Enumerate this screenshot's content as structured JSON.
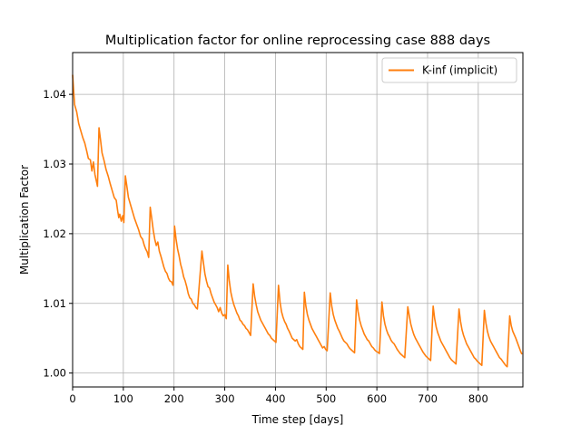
{
  "chart_data": {
    "type": "line",
    "title": "Multiplication factor for online reprocessing case 888 days",
    "xlabel": "Time step [days]",
    "ylabel": "Multiplication Factor",
    "xlim": [
      0,
      888
    ],
    "ylim": [
      0.998,
      1.046
    ],
    "x_ticks": [
      0,
      100,
      200,
      300,
      400,
      500,
      600,
      700,
      800
    ],
    "x_tick_labels": [
      "0",
      "100",
      "200",
      "300",
      "400",
      "500",
      "600",
      "700",
      "800"
    ],
    "y_ticks": [
      1.0,
      1.01,
      1.02,
      1.03,
      1.04
    ],
    "y_tick_labels": [
      "1.00",
      "1.01",
      "1.02",
      "1.03",
      "1.04"
    ],
    "grid": true,
    "legend_position": "top-right",
    "series": [
      {
        "name": "K-inf (implicit)",
        "color": "#ff7f0e",
        "points": [
          [
            0,
            1.0428
          ],
          [
            2,
            1.0405
          ],
          [
            4,
            1.0385
          ],
          [
            8,
            1.0375
          ],
          [
            12,
            1.0358
          ],
          [
            16,
            1.0348
          ],
          [
            20,
            1.0338
          ],
          [
            24,
            1.033
          ],
          [
            28,
            1.0318
          ],
          [
            31,
            1.0308
          ],
          [
            35,
            1.0306
          ],
          [
            38,
            1.029
          ],
          [
            41,
            1.0303
          ],
          [
            44,
            1.0285
          ],
          [
            47,
            1.0275
          ],
          [
            49,
            1.0268
          ],
          [
            52,
            1.0352
          ],
          [
            55,
            1.0335
          ],
          [
            58,
            1.0316
          ],
          [
            62,
            1.0305
          ],
          [
            66,
            1.0292
          ],
          [
            70,
            1.0283
          ],
          [
            74,
            1.0272
          ],
          [
            78,
            1.0262
          ],
          [
            82,
            1.0252
          ],
          [
            86,
            1.0248
          ],
          [
            89,
            1.0232
          ],
          [
            91,
            1.0223
          ],
          [
            93,
            1.0228
          ],
          [
            96,
            1.0218
          ],
          [
            99,
            1.0226
          ],
          [
            101,
            1.0216
          ],
          [
            104,
            1.0283
          ],
          [
            107,
            1.0268
          ],
          [
            110,
            1.0252
          ],
          [
            114,
            1.0242
          ],
          [
            118,
            1.0232
          ],
          [
            122,
            1.0222
          ],
          [
            126,
            1.0214
          ],
          [
            130,
            1.0206
          ],
          [
            134,
            1.0196
          ],
          [
            138,
            1.0192
          ],
          [
            141,
            1.0184
          ],
          [
            144,
            1.0178
          ],
          [
            147,
            1.0174
          ],
          [
            150,
            1.0166
          ],
          [
            153,
            1.0238
          ],
          [
            156,
            1.0222
          ],
          [
            159,
            1.0205
          ],
          [
            162,
            1.0192
          ],
          [
            165,
            1.0183
          ],
          [
            168,
            1.0188
          ],
          [
            171,
            1.0175
          ],
          [
            174,
            1.0168
          ],
          [
            177,
            1.016
          ],
          [
            180,
            1.0152
          ],
          [
            183,
            1.0146
          ],
          [
            186,
            1.0143
          ],
          [
            189,
            1.0136
          ],
          [
            192,
            1.0132
          ],
          [
            195,
            1.0131
          ],
          [
            198,
            1.0126
          ],
          [
            201,
            1.0211
          ],
          [
            204,
            1.0192
          ],
          [
            207,
            1.0178
          ],
          [
            210,
            1.0168
          ],
          [
            213,
            1.0156
          ],
          [
            216,
            1.0148
          ],
          [
            219,
            1.0138
          ],
          [
            222,
            1.0132
          ],
          [
            225,
            1.0124
          ],
          [
            228,
            1.0114
          ],
          [
            231,
            1.0108
          ],
          [
            234,
            1.0106
          ],
          [
            237,
            1.01
          ],
          [
            240,
            1.0098
          ],
          [
            243,
            1.0094
          ],
          [
            246,
            1.0092
          ],
          [
            255,
            1.0175
          ],
          [
            258,
            1.0158
          ],
          [
            261,
            1.0142
          ],
          [
            264,
            1.0132
          ],
          [
            267,
            1.0124
          ],
          [
            270,
            1.0122
          ],
          [
            273,
            1.0114
          ],
          [
            276,
            1.0108
          ],
          [
            279,
            1.0102
          ],
          [
            282,
            1.0098
          ],
          [
            285,
            1.0094
          ],
          [
            288,
            1.0088
          ],
          [
            291,
            1.0094
          ],
          [
            294,
            1.0086
          ],
          [
            297,
            1.0082
          ],
          [
            300,
            1.0084
          ],
          [
            303,
            1.0078
          ],
          [
            306,
            1.0155
          ],
          [
            309,
            1.0132
          ],
          [
            312,
            1.0116
          ],
          [
            315,
            1.0106
          ],
          [
            318,
            1.0098
          ],
          [
            321,
            1.0092
          ],
          [
            324,
            1.0086
          ],
          [
            327,
            1.0082
          ],
          [
            330,
            1.0076
          ],
          [
            333,
            1.0074
          ],
          [
            336,
            1.007
          ],
          [
            339,
            1.0068
          ],
          [
            342,
            1.0064
          ],
          [
            345,
            1.0062
          ],
          [
            348,
            1.0058
          ],
          [
            351,
            1.0054
          ],
          [
            356,
            1.0128
          ],
          [
            359,
            1.011
          ],
          [
            362,
            1.0098
          ],
          [
            365,
            1.0088
          ],
          [
            368,
            1.0082
          ],
          [
            371,
            1.0076
          ],
          [
            374,
            1.0072
          ],
          [
            377,
            1.0068
          ],
          [
            380,
            1.0064
          ],
          [
            383,
            1.006
          ],
          [
            386,
            1.0056
          ],
          [
            389,
            1.0054
          ],
          [
            392,
            1.005
          ],
          [
            395,
            1.0048
          ],
          [
            398,
            1.0046
          ],
          [
            401,
            1.0044
          ],
          [
            406,
            1.0126
          ],
          [
            409,
            1.0102
          ],
          [
            412,
            1.0088
          ],
          [
            415,
            1.008
          ],
          [
            418,
            1.0074
          ],
          [
            421,
            1.007
          ],
          [
            424,
            1.0064
          ],
          [
            427,
            1.006
          ],
          [
            430,
            1.0055
          ],
          [
            433,
            1.005
          ],
          [
            436,
            1.0048
          ],
          [
            439,
            1.0046
          ],
          [
            442,
            1.0048
          ],
          [
            445,
            1.0042
          ],
          [
            448,
            1.0038
          ],
          [
            451,
            1.0036
          ],
          [
            454,
            1.0034
          ],
          [
            457,
            1.0116
          ],
          [
            460,
            1.0096
          ],
          [
            463,
            1.0084
          ],
          [
            466,
            1.0076
          ],
          [
            469,
            1.007
          ],
          [
            472,
            1.0064
          ],
          [
            475,
            1.006
          ],
          [
            478,
            1.0056
          ],
          [
            481,
            1.0052
          ],
          [
            484,
            1.0048
          ],
          [
            487,
            1.0044
          ],
          [
            490,
            1.004
          ],
          [
            493,
            1.0036
          ],
          [
            496,
            1.0038
          ],
          [
            499,
            1.0034
          ],
          [
            502,
            1.0032
          ],
          [
            508,
            1.0115
          ],
          [
            511,
            1.0096
          ],
          [
            514,
            1.0084
          ],
          [
            517,
            1.0076
          ],
          [
            520,
            1.007
          ],
          [
            523,
            1.0064
          ],
          [
            526,
            1.006
          ],
          [
            529,
            1.0055
          ],
          [
            532,
            1.005
          ],
          [
            535,
            1.0046
          ],
          [
            538,
            1.0044
          ],
          [
            541,
            1.0042
          ],
          [
            544,
            1.0038
          ],
          [
            547,
            1.0035
          ],
          [
            550,
            1.0033
          ],
          [
            553,
            1.0031
          ],
          [
            556,
            1.0029
          ],
          [
            560,
            1.0105
          ],
          [
            563,
            1.0088
          ],
          [
            566,
            1.0076
          ],
          [
            569,
            1.0068
          ],
          [
            572,
            1.0062
          ],
          [
            575,
            1.0056
          ],
          [
            578,
            1.0052
          ],
          [
            581,
            1.0048
          ],
          [
            584,
            1.0046
          ],
          [
            587,
            1.0042
          ],
          [
            590,
            1.0038
          ],
          [
            593,
            1.0036
          ],
          [
            596,
            1.0033
          ],
          [
            599,
            1.0031
          ],
          [
            602,
            1.003
          ],
          [
            605,
            1.0028
          ],
          [
            610,
            1.0102
          ],
          [
            613,
            1.0082
          ],
          [
            616,
            1.007
          ],
          [
            619,
            1.0062
          ],
          [
            622,
            1.0056
          ],
          [
            625,
            1.0052
          ],
          [
            628,
            1.0047
          ],
          [
            631,
            1.0044
          ],
          [
            634,
            1.0042
          ],
          [
            637,
            1.0038
          ],
          [
            640,
            1.0034
          ],
          [
            643,
            1.0031
          ],
          [
            646,
            1.0028
          ],
          [
            649,
            1.0026
          ],
          [
            652,
            1.0024
          ],
          [
            655,
            1.0022
          ],
          [
            661,
            1.0095
          ],
          [
            664,
            1.0082
          ],
          [
            667,
            1.007
          ],
          [
            670,
            1.0062
          ],
          [
            673,
            1.0055
          ],
          [
            676,
            1.005
          ],
          [
            679,
            1.0046
          ],
          [
            682,
            1.0042
          ],
          [
            685,
            1.0038
          ],
          [
            688,
            1.0034
          ],
          [
            691,
            1.003
          ],
          [
            694,
            1.0027
          ],
          [
            697,
            1.0024
          ],
          [
            700,
            1.0022
          ],
          [
            703,
            1.002
          ],
          [
            706,
            1.0018
          ],
          [
            711,
            1.0096
          ],
          [
            714,
            1.0078
          ],
          [
            717,
            1.0066
          ],
          [
            720,
            1.0058
          ],
          [
            723,
            1.0052
          ],
          [
            726,
            1.0046
          ],
          [
            729,
            1.0042
          ],
          [
            732,
            1.0038
          ],
          [
            735,
            1.0034
          ],
          [
            738,
            1.003
          ],
          [
            741,
            1.0026
          ],
          [
            744,
            1.0022
          ],
          [
            747,
            1.0019
          ],
          [
            750,
            1.0017
          ],
          [
            753,
            1.0015
          ],
          [
            756,
            1.0013
          ],
          [
            762,
            1.0092
          ],
          [
            765,
            1.0074
          ],
          [
            768,
            1.0062
          ],
          [
            771,
            1.0054
          ],
          [
            774,
            1.0048
          ],
          [
            777,
            1.0042
          ],
          [
            780,
            1.0038
          ],
          [
            783,
            1.0034
          ],
          [
            786,
            1.003
          ],
          [
            789,
            1.0026
          ],
          [
            792,
            1.0022
          ],
          [
            795,
            1.002
          ],
          [
            798,
            1.0017
          ],
          [
            801,
            1.0015
          ],
          [
            804,
            1.0013
          ],
          [
            807,
            1.0011
          ],
          [
            812,
            1.009
          ],
          [
            815,
            1.0072
          ],
          [
            818,
            1.006
          ],
          [
            821,
            1.0052
          ],
          [
            824,
            1.0046
          ],
          [
            827,
            1.0042
          ],
          [
            830,
            1.0038
          ],
          [
            833,
            1.0034
          ],
          [
            836,
            1.003
          ],
          [
            839,
            1.0026
          ],
          [
            842,
            1.0022
          ],
          [
            845,
            1.002
          ],
          [
            848,
            1.0017
          ],
          [
            851,
            1.0014
          ],
          [
            854,
            1.0011
          ],
          [
            857,
            1.0009
          ],
          [
            862,
            1.0082
          ],
          [
            865,
            1.0068
          ],
          [
            868,
            1.006
          ],
          [
            871,
            1.0055
          ],
          [
            874,
            1.005
          ],
          [
            877,
            1.0044
          ],
          [
            880,
            1.0038
          ],
          [
            883,
            1.0032
          ],
          [
            886,
            1.0027
          ]
        ]
      }
    ]
  }
}
